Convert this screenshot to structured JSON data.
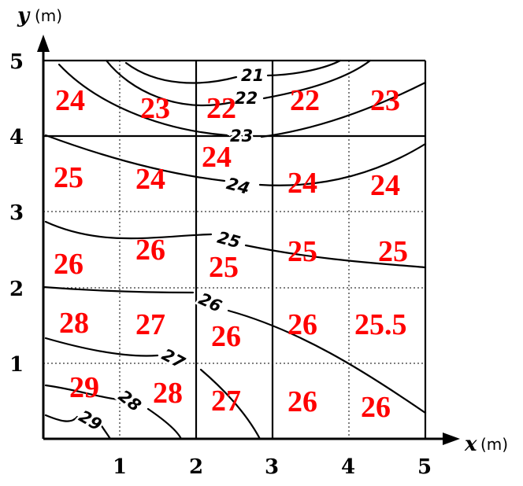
{
  "axes": {
    "x_symbol": "x",
    "x_unit": "(m)",
    "y_symbol": "y",
    "y_unit": "(m)",
    "x_ticks": [
      "1",
      "2",
      "3",
      "4",
      "5"
    ],
    "y_ticks": [
      "1",
      "2",
      "3",
      "4",
      "5"
    ],
    "range": [
      0,
      5
    ]
  },
  "contours": [
    {
      "label": "21"
    },
    {
      "label": "22"
    },
    {
      "label": "23"
    },
    {
      "label": "24"
    },
    {
      "label": "25"
    },
    {
      "label": "26"
    },
    {
      "label": "27"
    },
    {
      "label": "28"
    },
    {
      "label": "29"
    }
  ],
  "cells": [
    {
      "value": "24"
    },
    {
      "value": "23"
    },
    {
      "value": "22"
    },
    {
      "value": "22"
    },
    {
      "value": "23"
    },
    {
      "value": "25"
    },
    {
      "value": "24"
    },
    {
      "value": "24"
    },
    {
      "value": "24"
    },
    {
      "value": "24"
    },
    {
      "value": "26"
    },
    {
      "value": "26"
    },
    {
      "value": "25"
    },
    {
      "value": "25"
    },
    {
      "value": "25"
    },
    {
      "value": "28"
    },
    {
      "value": "27"
    },
    {
      "value": "26"
    },
    {
      "value": "26"
    },
    {
      "value": "25.5"
    },
    {
      "value": "29"
    },
    {
      "value": "28"
    },
    {
      "value": "27"
    },
    {
      "value": "26"
    },
    {
      "value": "26"
    }
  ],
  "colors": {
    "cell_value": "#ff0000",
    "lines": "#000000"
  }
}
